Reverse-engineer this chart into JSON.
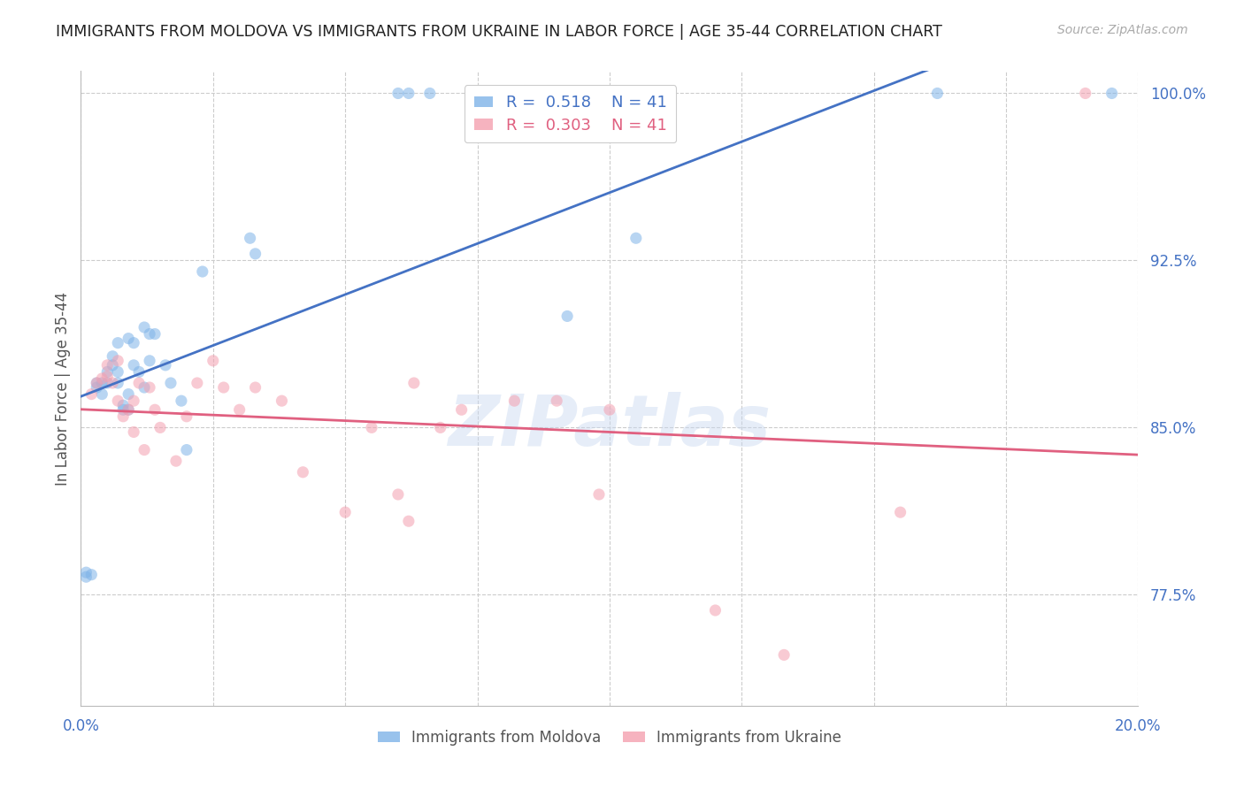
{
  "title": "IMMIGRANTS FROM MOLDOVA VS IMMIGRANTS FROM UKRAINE IN LABOR FORCE | AGE 35-44 CORRELATION CHART",
  "source": "Source: ZipAtlas.com",
  "ylabel": "In Labor Force | Age 35-44",
  "xlim": [
    0.0,
    0.2
  ],
  "ylim": [
    0.725,
    1.01
  ],
  "xticks": [
    0.0,
    0.025,
    0.05,
    0.075,
    0.1,
    0.125,
    0.15,
    0.175,
    0.2
  ],
  "yticks": [
    0.775,
    0.85,
    0.925,
    1.0
  ],
  "yticklabels": [
    "77.5%",
    "85.0%",
    "92.5%",
    "100.0%"
  ],
  "legend_r_blue": "0.518",
  "legend_n_blue": "41",
  "legend_r_pink": "0.303",
  "legend_n_pink": "41",
  "blue_color": "#7EB3E8",
  "pink_color": "#F4A0B0",
  "blue_line_color": "#4472C4",
  "pink_line_color": "#E06080",
  "scatter_alpha": 0.55,
  "scatter_size": 90,
  "moldova_x": [
    0.001,
    0.001,
    0.002,
    0.003,
    0.003,
    0.004,
    0.004,
    0.005,
    0.005,
    0.006,
    0.006,
    0.007,
    0.007,
    0.007,
    0.008,
    0.008,
    0.009,
    0.009,
    0.009,
    0.01,
    0.01,
    0.011,
    0.012,
    0.012,
    0.013,
    0.013,
    0.014,
    0.016,
    0.017,
    0.019,
    0.02,
    0.023,
    0.032,
    0.033,
    0.06,
    0.062,
    0.066,
    0.092,
    0.105,
    0.162,
    0.195
  ],
  "moldova_y": [
    0.785,
    0.783,
    0.784,
    0.87,
    0.868,
    0.87,
    0.865,
    0.875,
    0.87,
    0.878,
    0.882,
    0.87,
    0.888,
    0.875,
    0.86,
    0.858,
    0.89,
    0.865,
    0.858,
    0.878,
    0.888,
    0.875,
    0.868,
    0.895,
    0.88,
    0.892,
    0.892,
    0.878,
    0.87,
    0.862,
    0.84,
    0.92,
    0.935,
    0.928,
    1.0,
    1.0,
    1.0,
    0.9,
    0.935,
    1.0,
    1.0
  ],
  "ukraine_x": [
    0.002,
    0.003,
    0.004,
    0.005,
    0.005,
    0.006,
    0.007,
    0.007,
    0.008,
    0.009,
    0.01,
    0.01,
    0.011,
    0.012,
    0.013,
    0.014,
    0.015,
    0.018,
    0.02,
    0.022,
    0.025,
    0.027,
    0.03,
    0.033,
    0.038,
    0.042,
    0.05,
    0.055,
    0.06,
    0.063,
    0.068,
    0.072,
    0.082,
    0.09,
    0.1,
    0.12,
    0.133,
    0.155,
    0.19,
    0.098,
    0.062
  ],
  "ukraine_y": [
    0.865,
    0.87,
    0.872,
    0.878,
    0.873,
    0.87,
    0.88,
    0.862,
    0.855,
    0.858,
    0.862,
    0.848,
    0.87,
    0.84,
    0.868,
    0.858,
    0.85,
    0.835,
    0.855,
    0.87,
    0.88,
    0.868,
    0.858,
    0.868,
    0.862,
    0.83,
    0.812,
    0.85,
    0.82,
    0.87,
    0.85,
    0.858,
    0.862,
    0.862,
    0.858,
    0.768,
    0.748,
    0.812,
    1.0,
    0.82,
    0.808
  ],
  "watermark_text": "ZIPatlas",
  "bg_color": "#FFFFFF",
  "grid_color": "#CCCCCC",
  "title_color": "#222222",
  "axis_label_color": "#555555",
  "ytick_color": "#4472C4",
  "xtick_color": "#4472C4"
}
